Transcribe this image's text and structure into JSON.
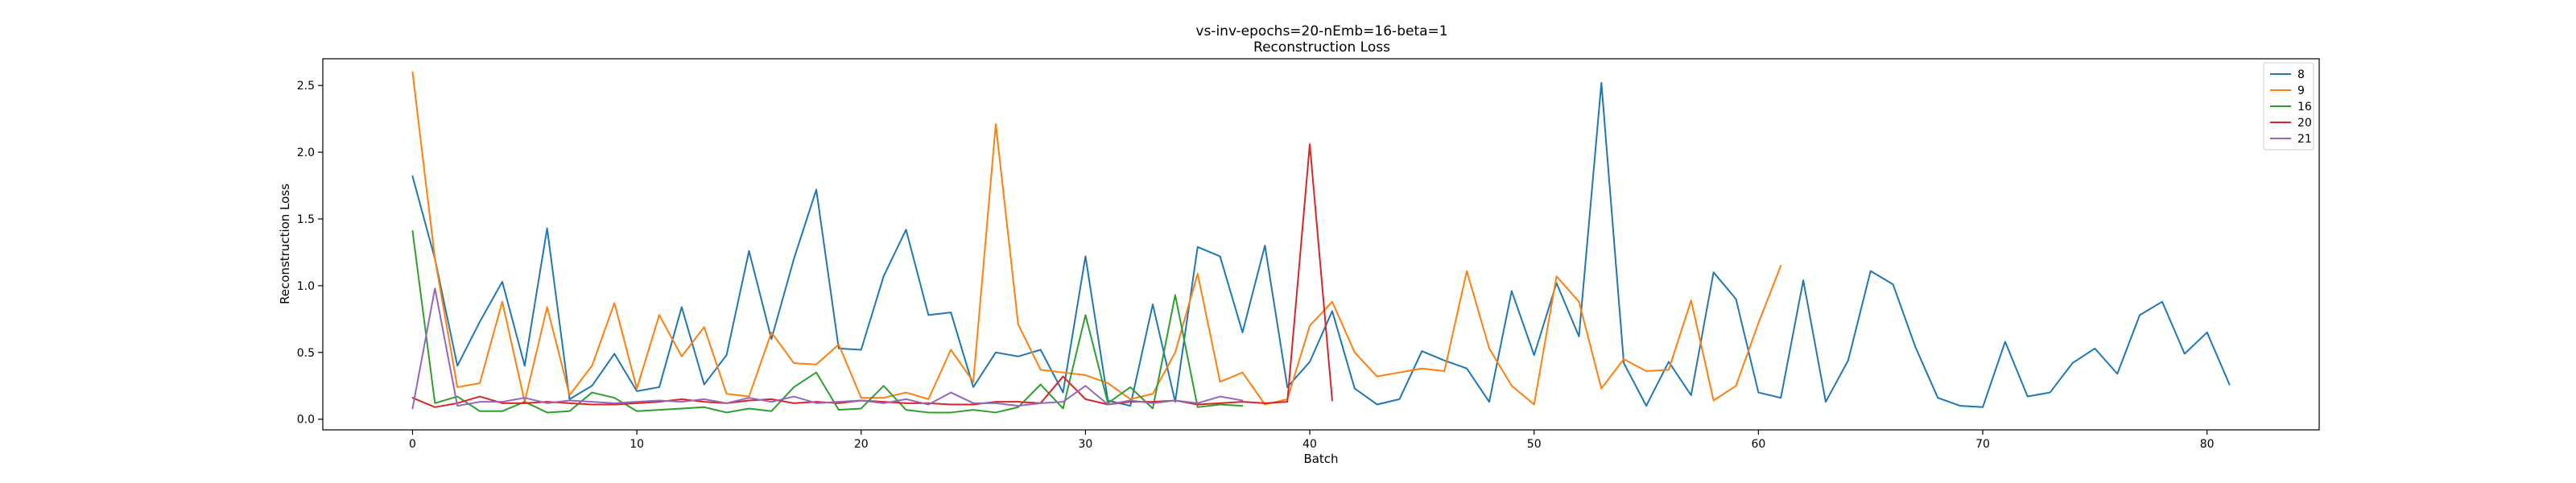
{
  "chart_data": {
    "type": "line",
    "title": "vs-inv-epochs=20-nEmb=16-beta=1",
    "subtitle": "Reconstruction Loss",
    "xlabel": "Batch",
    "ylabel": "Reconstruction Loss",
    "xlim": [
      -4,
      85
    ],
    "ylim": [
      -0.08,
      2.7
    ],
    "xticks": [
      0,
      10,
      20,
      30,
      40,
      50,
      60,
      70,
      80
    ],
    "yticks": [
      0.0,
      0.5,
      1.0,
      1.5,
      2.0,
      2.5
    ],
    "xtick_labels": [
      "0",
      "10",
      "20",
      "30",
      "40",
      "50",
      "60",
      "70",
      "80"
    ],
    "ytick_labels": [
      "0.0",
      "0.5",
      "1.0",
      "1.5",
      "2.0",
      "2.5"
    ],
    "grid": false,
    "legend_position": "top-right",
    "series": [
      {
        "name": "8",
        "color": "#1f77b4",
        "values": [
          1.82,
          1.2,
          0.4,
          0.73,
          1.03,
          0.4,
          1.43,
          0.15,
          0.25,
          0.49,
          0.21,
          0.24,
          0.84,
          0.26,
          0.48,
          1.26,
          0.6,
          1.2,
          1.72,
          0.53,
          0.52,
          1.07,
          1.42,
          0.78,
          0.8,
          0.24,
          0.5,
          0.47,
          0.52,
          0.2,
          1.22,
          0.14,
          0.1,
          0.86,
          0.13,
          1.29,
          1.22,
          0.65,
          1.3,
          0.24,
          0.43,
          0.81,
          0.23,
          0.11,
          0.15,
          0.51,
          0.44,
          0.38,
          0.13,
          0.96,
          0.48,
          1.02,
          0.62,
          2.52,
          0.42,
          0.1,
          0.43,
          0.18,
          1.1,
          0.9,
          0.2,
          0.16,
          1.04,
          0.13,
          0.44,
          1.11,
          1.01,
          0.54,
          0.16,
          0.1,
          0.09,
          0.58,
          0.17,
          0.2,
          0.42,
          0.53,
          0.34,
          0.78,
          0.88,
          0.49,
          0.65,
          0.26
        ]
      },
      {
        "name": "9",
        "color": "#ff7f0e",
        "values": [
          2.6,
          1.2,
          0.24,
          0.27,
          0.88,
          0.13,
          0.84,
          0.18,
          0.4,
          0.87,
          0.23,
          0.78,
          0.47,
          0.69,
          0.19,
          0.17,
          0.65,
          0.42,
          0.41,
          0.56,
          0.16,
          0.16,
          0.2,
          0.15,
          0.52,
          0.28,
          2.21,
          0.71,
          0.37,
          0.35,
          0.33,
          0.27,
          0.15,
          0.19,
          0.5,
          1.09,
          0.28,
          0.35,
          0.11,
          0.15,
          0.7,
          0.88,
          0.5,
          0.32,
          0.35,
          0.38,
          0.36,
          1.11,
          0.53,
          0.25,
          0.11,
          1.07,
          0.88,
          0.23,
          0.45,
          0.36,
          0.37,
          0.89,
          0.14,
          0.25,
          0.72,
          1.15
        ]
      },
      {
        "name": "16",
        "color": "#2ca02c",
        "values": [
          1.41,
          0.12,
          0.17,
          0.06,
          0.06,
          0.13,
          0.05,
          0.06,
          0.2,
          0.16,
          0.06,
          0.07,
          0.08,
          0.09,
          0.05,
          0.08,
          0.06,
          0.24,
          0.35,
          0.07,
          0.08,
          0.25,
          0.07,
          0.05,
          0.05,
          0.07,
          0.05,
          0.09,
          0.26,
          0.08,
          0.78,
          0.12,
          0.24,
          0.08,
          0.93,
          0.09,
          0.11,
          0.1
        ]
      },
      {
        "name": "20",
        "color": "#d62728",
        "values": [
          0.16,
          0.09,
          0.12,
          0.17,
          0.12,
          0.12,
          0.13,
          0.12,
          0.11,
          0.11,
          0.12,
          0.13,
          0.15,
          0.13,
          0.12,
          0.14,
          0.15,
          0.12,
          0.13,
          0.12,
          0.14,
          0.13,
          0.12,
          0.12,
          0.11,
          0.11,
          0.13,
          0.13,
          0.12,
          0.32,
          0.15,
          0.11,
          0.13,
          0.13,
          0.14,
          0.11,
          0.12,
          0.13,
          0.12,
          0.13,
          2.06,
          0.14
        ]
      },
      {
        "name": "21",
        "color": "#9467bd",
        "values": [
          0.08,
          0.98,
          0.1,
          0.13,
          0.13,
          0.16,
          0.12,
          0.14,
          0.13,
          0.12,
          0.13,
          0.14,
          0.13,
          0.15,
          0.12,
          0.16,
          0.13,
          0.17,
          0.12,
          0.13,
          0.14,
          0.12,
          0.15,
          0.11,
          0.2,
          0.12,
          0.12,
          0.1,
          0.12,
          0.13,
          0.25,
          0.11,
          0.14,
          0.12,
          0.14,
          0.12,
          0.17,
          0.14
        ]
      }
    ]
  }
}
